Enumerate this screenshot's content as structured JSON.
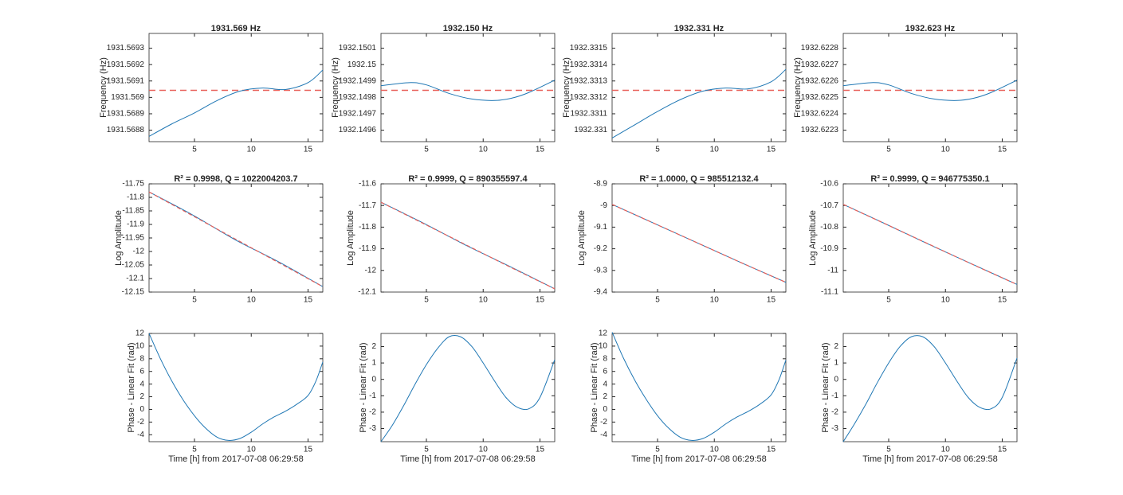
{
  "chart_data": [
    {
      "type": "line",
      "title": "1931.569 Hz",
      "title_color": "#e0201b",
      "ylabel": "Frequency (Hz)",
      "x": [
        1,
        3,
        5,
        7,
        9,
        11,
        13,
        15,
        16.3
      ],
      "series": [
        {
          "color": "#1f77b4",
          "values": [
            1931.568762,
            1931.568838,
            1931.568905,
            1931.568981,
            1931.569038,
            1931.569057,
            1931.569048,
            1931.56909,
            1931.569167
          ]
        }
      ],
      "ref_line": {
        "value": 1931.569043,
        "color": "#e8605a"
      },
      "xlim": [
        1,
        16.3
      ],
      "ylim": [
        1931.56873,
        1931.56939
      ],
      "xticks": [
        5,
        10,
        15
      ],
      "yticks": [
        1931.5688,
        1931.5689,
        1931.569,
        1931.5691,
        1931.5692,
        1931.5693
      ]
    },
    {
      "type": "line",
      "title": "1932.150 Hz",
      "title_color": "#e0201b",
      "ylabel": "Frequency (Hz)",
      "x": [
        1,
        3.5,
        5,
        7,
        9,
        11,
        12.5,
        14,
        16.3
      ],
      "series": [
        {
          "color": "#1f77b4",
          "values": [
            1932.149871,
            1932.14989,
            1932.149876,
            1932.149824,
            1932.14979,
            1932.149781,
            1932.149795,
            1932.149829,
            1932.149905
          ]
        }
      ],
      "ref_line": {
        "value": 1932.149843,
        "color": "#e8605a"
      },
      "xlim": [
        1,
        16.3
      ],
      "ylim": [
        1932.14953,
        1932.15019
      ],
      "xticks": [
        5,
        10,
        15
      ],
      "yticks": [
        1932.1496,
        1932.1497,
        1932.1498,
        1932.1499,
        1932.15,
        1932.1501
      ]
    },
    {
      "type": "line",
      "title": "1932.331 Hz",
      "title_color": "#e0201b",
      "ylabel": "Frequency (Hz)",
      "x": [
        1,
        3,
        5,
        7,
        9,
        11,
        13,
        15,
        16.3
      ],
      "series": [
        {
          "color": "#1f77b4",
          "values": [
            1932.330952,
            1932.331033,
            1932.331114,
            1932.331186,
            1932.331238,
            1932.331257,
            1932.331252,
            1932.331295,
            1932.331371
          ]
        }
      ],
      "ref_line": {
        "value": 1932.331243,
        "color": "#e8605a"
      },
      "xlim": [
        1,
        16.3
      ],
      "ylim": [
        1932.33093,
        1932.33159
      ],
      "xticks": [
        5,
        10,
        15
      ],
      "yticks": [
        1932.331,
        1932.3311,
        1932.3312,
        1932.3313,
        1932.3314,
        1932.3315
      ]
    },
    {
      "type": "line",
      "title": "1932.623 Hz",
      "title_color": "#e0201b",
      "ylabel": "Frequency (Hz)",
      "x": [
        1,
        3.5,
        5,
        7,
        9,
        11,
        12.5,
        14,
        16.3
      ],
      "series": [
        {
          "color": "#1f77b4",
          "values": [
            1932.622571,
            1932.62259,
            1932.622576,
            1932.622524,
            1932.62249,
            1932.622481,
            1932.622495,
            1932.622529,
            1932.622605
          ]
        }
      ],
      "ref_line": {
        "value": 1932.622543,
        "color": "#e8605a"
      },
      "xlim": [
        1,
        16.3
      ],
      "ylim": [
        1932.62223,
        1932.62289
      ],
      "xticks": [
        5,
        10,
        15
      ],
      "yticks": [
        1932.6223,
        1932.6224,
        1932.6225,
        1932.6226,
        1932.6227,
        1932.6228
      ]
    },
    {
      "type": "line",
      "title": "R² = 0.9998, Q = 1022004203.7",
      "title_color": "#000000",
      "ylabel": "Log Amplitude",
      "x": [
        1,
        4.8,
        8.6,
        12.4,
        16.3
      ],
      "series": [
        {
          "color": "#1f77b4",
          "values": [
            -11.78,
            -11.864,
            -11.957,
            -12.038,
            -12.13
          ]
        },
        {
          "color": "#e8605a",
          "dash": true,
          "values": [
            -11.78,
            -11.867,
            -11.954,
            -12.041,
            -12.13
          ]
        }
      ],
      "xlim": [
        1,
        16.3
      ],
      "ylim": [
        -12.15,
        -11.75
      ],
      "xticks": [
        5,
        10,
        15
      ],
      "yticks": [
        -12.15,
        -12.1,
        -12.05,
        -12,
        -11.95,
        -11.9,
        -11.85,
        -11.8,
        -11.75
      ]
    },
    {
      "type": "line",
      "title": "R² = 0.9999, Q = 890355597.4",
      "title_color": "#000000",
      "ylabel": "Log Amplitude",
      "x": [
        1,
        4.8,
        8.6,
        12.4,
        16.3
      ],
      "series": [
        {
          "color": "#1f77b4",
          "values": [
            -11.685,
            -11.783,
            -11.887,
            -11.983,
            -12.085
          ]
        },
        {
          "color": "#e8605a",
          "dash": true,
          "values": [
            -11.685,
            -11.785,
            -11.885,
            -11.985,
            -12.085
          ]
        }
      ],
      "xlim": [
        1,
        16.3
      ],
      "ylim": [
        -12.1,
        -11.6
      ],
      "xticks": [
        5,
        10,
        15
      ],
      "yticks": [
        -12.1,
        -12,
        -11.9,
        -11.8,
        -11.7,
        -11.6
      ]
    },
    {
      "type": "line",
      "title": "R² = 1.0000, Q = 985512132.4",
      "title_color": "#000000",
      "ylabel": "Log Amplitude",
      "x": [
        1,
        4.8,
        8.6,
        12.4,
        16.3
      ],
      "series": [
        {
          "color": "#1f77b4",
          "values": [
            -8.995,
            -9.085,
            -9.175,
            -9.265,
            -9.355
          ]
        },
        {
          "color": "#e8605a",
          "dash": true,
          "values": [
            -8.995,
            -9.085,
            -9.175,
            -9.265,
            -9.355
          ]
        }
      ],
      "xlim": [
        1,
        16.3
      ],
      "ylim": [
        -9.4,
        -8.9
      ],
      "xticks": [
        5,
        10,
        15
      ],
      "yticks": [
        -9.4,
        -9.3,
        -9.2,
        -9.1,
        -9,
        -8.9
      ]
    },
    {
      "type": "line",
      "title": "R² = 0.9999, Q = 946775350.1",
      "title_color": "#000000",
      "ylabel": "Log Amplitude",
      "x": [
        1,
        4.8,
        8.6,
        12.4,
        16.3
      ],
      "series": [
        {
          "color": "#1f77b4",
          "values": [
            -10.695,
            -10.787,
            -10.881,
            -10.972,
            -11.065
          ]
        },
        {
          "color": "#e8605a",
          "dash": true,
          "values": [
            -10.695,
            -10.7875,
            -10.88,
            -10.9725,
            -11.065
          ]
        }
      ],
      "xlim": [
        1,
        16.3
      ],
      "ylim": [
        -11.1,
        -10.6
      ],
      "xticks": [
        5,
        10,
        15
      ],
      "yticks": [
        -11.1,
        -11,
        -10.9,
        -10.8,
        -10.7,
        -10.6
      ]
    },
    {
      "type": "line",
      "ylabel": "Phase - Linear Fit (rad)",
      "xlabel": "Time [h] from 2017-07-08 06:29:58",
      "x": [
        1,
        2,
        3,
        4,
        5,
        6,
        7,
        8,
        9,
        10,
        11,
        12,
        13,
        14,
        15,
        15.7,
        16.3
      ],
      "series": [
        {
          "color": "#1f77b4",
          "values": [
            12,
            8,
            4.5,
            1.5,
            -1,
            -3,
            -4.4,
            -4.9,
            -4.6,
            -3.6,
            -2.3,
            -1.2,
            -0.3,
            0.8,
            2.2,
            4.5,
            7.5
          ]
        }
      ],
      "xlim": [
        1,
        16.3
      ],
      "ylim": [
        -5.1,
        12
      ],
      "xticks": [
        5,
        10,
        15
      ],
      "yticks": [
        -4,
        -2,
        0,
        2,
        4,
        6,
        8,
        10,
        12
      ]
    },
    {
      "type": "line",
      "ylabel": "Phase - Linear Fit (rad)",
      "xlabel": "Time [h] from 2017-07-08 06:29:58",
      "x": [
        1,
        2,
        3,
        4,
        5,
        6,
        7,
        8,
        9,
        10,
        11,
        12,
        13,
        14,
        15,
        16.3
      ],
      "series": [
        {
          "color": "#1f77b4",
          "values": [
            -3.8,
            -2.8,
            -1.6,
            -0.3,
            0.9,
            1.9,
            2.6,
            2.6,
            2,
            1,
            -0.1,
            -1.1,
            -1.7,
            -1.8,
            -1.1,
            1.2
          ]
        }
      ],
      "xlim": [
        1,
        16.3
      ],
      "ylim": [
        -3.8,
        2.8
      ],
      "xticks": [
        5,
        10,
        15
      ],
      "yticks": [
        -3,
        -2,
        -1,
        0,
        1,
        2
      ]
    },
    {
      "type": "line",
      "ylabel": "Phase - Linear Fit (rad)",
      "xlabel": "Time [h] from 2017-07-08 06:29:58",
      "x": [
        1,
        2,
        3,
        4,
        5,
        6,
        7,
        8,
        9,
        10,
        11,
        12,
        13,
        14,
        15,
        15.7,
        16.3
      ],
      "series": [
        {
          "color": "#1f77b4",
          "values": [
            12.2,
            8.1,
            4.6,
            1.6,
            -1,
            -3,
            -4.4,
            -4.9,
            -4.6,
            -3.6,
            -2.3,
            -1.2,
            -0.3,
            0.8,
            2.3,
            4.7,
            7.8
          ]
        }
      ],
      "xlim": [
        1,
        16.3
      ],
      "ylim": [
        -5.1,
        12
      ],
      "xticks": [
        5,
        10,
        15
      ],
      "yticks": [
        -4,
        -2,
        0,
        2,
        4,
        6,
        8,
        10,
        12
      ]
    },
    {
      "type": "line",
      "ylabel": "Phase - Linear Fit (rad)",
      "xlabel": "Time [h] from 2017-07-08 06:29:58",
      "x": [
        1,
        2,
        3,
        4,
        5,
        6,
        7,
        8,
        9,
        10,
        11,
        12,
        13,
        14,
        15,
        16.3
      ],
      "series": [
        {
          "color": "#1f77b4",
          "values": [
            -3.8,
            -2.7,
            -1.5,
            -0.2,
            1,
            2,
            2.6,
            2.6,
            2,
            1,
            -0.1,
            -1.1,
            -1.7,
            -1.8,
            -1.1,
            1.3
          ]
        }
      ],
      "xlim": [
        1,
        16.3
      ],
      "ylim": [
        -3.8,
        2.8
      ],
      "xticks": [
        5,
        10,
        15
      ],
      "yticks": [
        -3,
        -2,
        -1,
        0,
        1,
        2
      ]
    }
  ]
}
